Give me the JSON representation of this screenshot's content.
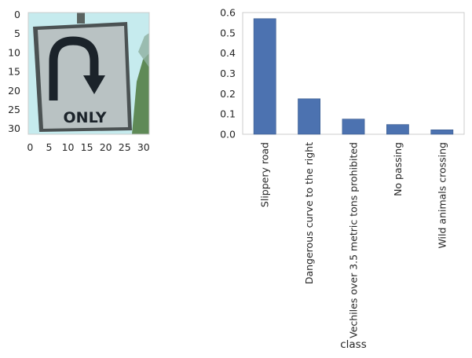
{
  "image_panel": {
    "x_ticks": [
      "0",
      "5",
      "10",
      "15",
      "20",
      "25",
      "30"
    ],
    "y_ticks": [
      "0",
      "5",
      "10",
      "15",
      "20",
      "25",
      "30"
    ],
    "xlim": [
      -0.5,
      31.5
    ],
    "ylim": [
      31.5,
      -0.5
    ],
    "sign_text": "ONLY",
    "colors": {
      "sky": "#c6ebee",
      "sign_face": "#b9c2c3",
      "sign_border": "#4b5253",
      "symbol": "#1b232a",
      "foliage": "#5f8a57",
      "pole": "#5a6360"
    }
  },
  "chart_data": {
    "type": "bar",
    "categories": [
      "Slippery road",
      "Dangerous curve to the right",
      "Vechiles over 3.5 metric tons prohibited",
      "No passing",
      "Wild animals crossing"
    ],
    "values": [
      0.57,
      0.175,
      0.075,
      0.048,
      0.022
    ],
    "xlabel": "class",
    "ylim": [
      0,
      0.6
    ],
    "y_ticks": [
      "0.0",
      "0.1",
      "0.2",
      "0.3",
      "0.4",
      "0.5",
      "0.6"
    ],
    "grid": false,
    "bar_color": "#4c72b0"
  }
}
